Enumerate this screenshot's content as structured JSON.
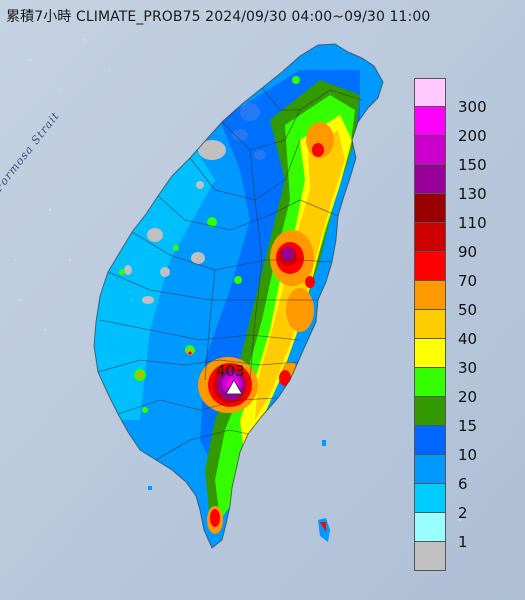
{
  "title": "累積7小時 CLIMATE_PROB75 2024/09/30 04:00~09/30 11:00",
  "strait_label": "Formosa Strait",
  "max_value_label": "403",
  "legend": {
    "levels": [
      {
        "label": "300",
        "color": "#ffc8ff"
      },
      {
        "label": "200",
        "color": "#ff00ff"
      },
      {
        "label": "150",
        "color": "#cc00cc"
      },
      {
        "label": "130",
        "color": "#990099"
      },
      {
        "label": "110",
        "color": "#990000"
      },
      {
        "label": "90",
        "color": "#cc0000"
      },
      {
        "label": "70",
        "color": "#ff0000"
      },
      {
        "label": "50",
        "color": "#ff9900"
      },
      {
        "label": "40",
        "color": "#ffcc00"
      },
      {
        "label": "30",
        "color": "#ffff00"
      },
      {
        "label": "20",
        "color": "#33ff00"
      },
      {
        "label": "15",
        "color": "#339900"
      },
      {
        "label": "10",
        "color": "#0066ff"
      },
      {
        "label": "6",
        "color": "#0099ff"
      },
      {
        "label": "2",
        "color": "#00ccff"
      },
      {
        "label": "1",
        "color": "#99ffff"
      },
      {
        "label": "",
        "color": "#c0c0c0"
      }
    ]
  }
}
